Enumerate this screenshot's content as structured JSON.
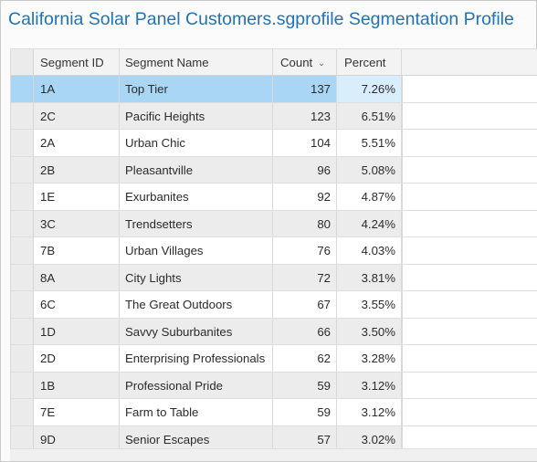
{
  "window": {
    "title": "California Solar Panel Customers.sgprofile Segmentation Profile"
  },
  "table": {
    "columns": {
      "segment_id": "Segment ID",
      "segment_name": "Segment Name",
      "count": "Count",
      "percent": "Percent"
    },
    "sort": {
      "column": "Count",
      "direction": "descending",
      "icon": "chevron-down-icon"
    },
    "selected_row": 0,
    "rows": [
      {
        "id": "1A",
        "name": "Top Tier",
        "count": "137",
        "percent": "7.26%"
      },
      {
        "id": "2C",
        "name": "Pacific Heights",
        "count": "123",
        "percent": "6.51%"
      },
      {
        "id": "2A",
        "name": "Urban Chic",
        "count": "104",
        "percent": "5.51%"
      },
      {
        "id": "2B",
        "name": "Pleasantville",
        "count": "96",
        "percent": "5.08%"
      },
      {
        "id": "1E",
        "name": "Exurbanites",
        "count": "92",
        "percent": "4.87%"
      },
      {
        "id": "3C",
        "name": "Trendsetters",
        "count": "80",
        "percent": "4.24%"
      },
      {
        "id": "7B",
        "name": "Urban Villages",
        "count": "76",
        "percent": "4.03%"
      },
      {
        "id": "8A",
        "name": "City Lights",
        "count": "72",
        "percent": "3.81%"
      },
      {
        "id": "6C",
        "name": "The Great Outdoors",
        "count": "67",
        "percent": "3.55%"
      },
      {
        "id": "1D",
        "name": "Savvy Suburbanites",
        "count": "66",
        "percent": "3.50%"
      },
      {
        "id": "2D",
        "name": "Enterprising Professionals",
        "count": "62",
        "percent": "3.28%"
      },
      {
        "id": "1B",
        "name": "Professional Pride",
        "count": "59",
        "percent": "3.12%"
      },
      {
        "id": "7E",
        "name": "Farm to Table",
        "count": "59",
        "percent": "3.12%"
      },
      {
        "id": "9D",
        "name": "Senior Escapes",
        "count": "57",
        "percent": "3.02%"
      }
    ]
  },
  "colors": {
    "title": "#1f73b7",
    "selection": "#a9d6f5",
    "alt_row": "#ececec"
  }
}
